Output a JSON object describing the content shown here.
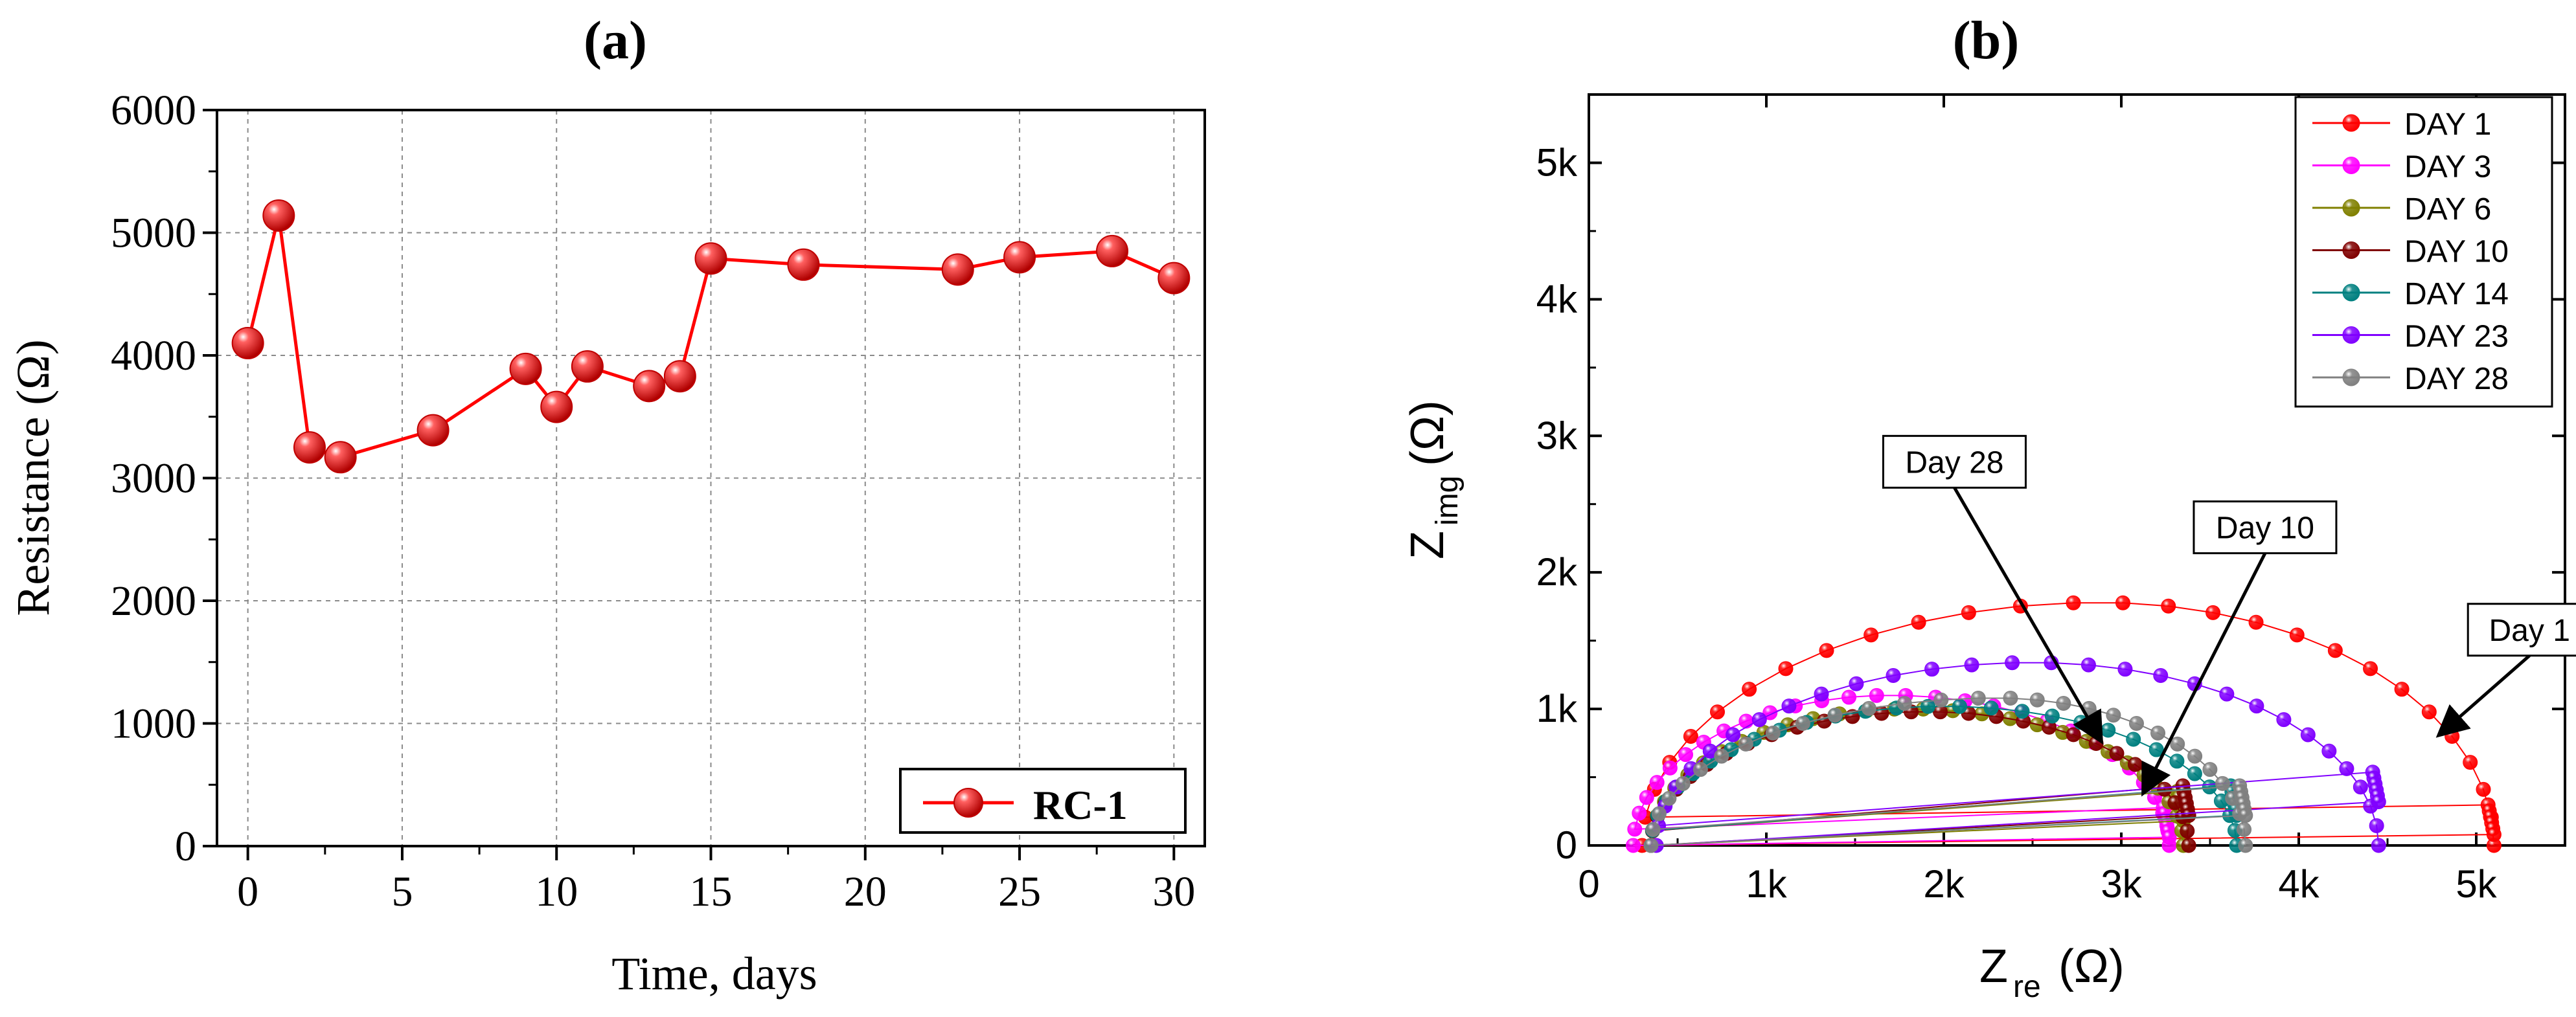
{
  "chart_data": [
    {
      "id": "a",
      "type": "line",
      "panel_label": "(a)",
      "xlabel": "Time, days",
      "ylabel": "Resistance (Ω)",
      "xlim": [
        -1,
        31
      ],
      "ylim": [
        0,
        6000
      ],
      "xticks": [
        0,
        5,
        10,
        15,
        20,
        25,
        30
      ],
      "xtick_labels": [
        "0",
        "5",
        "10",
        "15",
        "20",
        "25",
        "30"
      ],
      "yticks": [
        0,
        1000,
        2000,
        3000,
        4000,
        5000,
        6000
      ],
      "ytick_labels": [
        "0",
        "1000",
        "2000",
        "3000",
        "4000",
        "5000",
        "6000"
      ],
      "grid": true,
      "legend_position": "bottom-right",
      "series": [
        {
          "name": "RC-1",
          "color": "#ff0000",
          "x": [
            0,
            1,
            2,
            3,
            6,
            9,
            10,
            11,
            13,
            14,
            15,
            18,
            23,
            25,
            28,
            30
          ],
          "y": [
            4100,
            5140,
            3250,
            3170,
            3390,
            3890,
            3580,
            3910,
            3750,
            3830,
            4790,
            4740,
            4700,
            4800,
            4850,
            4630
          ]
        }
      ]
    },
    {
      "id": "b",
      "type": "scatter",
      "panel_label": "(b)",
      "xlabel_main": "Z",
      "xlabel_sub": "re",
      "xlabel_unit": "(Ω)",
      "ylabel_main": "Z",
      "ylabel_sub": "img",
      "ylabel_unit": "(Ω)",
      "xlim": [
        0,
        5500
      ],
      "ylim": [
        0,
        5500
      ],
      "xticks": [
        0,
        1000,
        2000,
        3000,
        4000,
        5000
      ],
      "xtick_labels": [
        "0",
        "1k",
        "2k",
        "3k",
        "4k",
        "5k"
      ],
      "yticks": [
        0,
        1000,
        2000,
        3000,
        4000,
        5000
      ],
      "ytick_labels": [
        "0",
        "1k",
        "2k",
        "3k",
        "4k",
        "5k"
      ],
      "legend_position": "top-right",
      "series": [
        {
          "name": "DAY 1",
          "color": "#ff0000",
          "z_start": 300,
          "z_end": 5100,
          "peak_x": 2880,
          "peak_y": 1780,
          "n": 28,
          "tail_to": 80
        },
        {
          "name": "DAY 3",
          "color": "#ff00ff",
          "z_start": 250,
          "z_end": 3270,
          "peak_x": 1700,
          "peak_y": 1100,
          "n": 30,
          "tail_to": 60
        },
        {
          "name": "DAY 6",
          "color": "#808000",
          "z_start": 350,
          "z_end": 3350,
          "peak_x": 1800,
          "peak_y": 1000,
          "n": 30,
          "tail_to": 180
        },
        {
          "name": "DAY 10",
          "color": "#800000",
          "z_start": 350,
          "z_end": 3380,
          "peak_x": 1900,
          "peak_y": 980,
          "n": 30,
          "tail_to": 220
        },
        {
          "name": "DAY 14",
          "color": "#008080",
          "z_start": 350,
          "z_end": 3650,
          "peak_x": 2000,
          "peak_y": 1020,
          "n": 30,
          "tail_to": 220
        },
        {
          "name": "DAY 23",
          "color": "#8000ff",
          "z_start": 380,
          "z_end": 4450,
          "peak_x": 2500,
          "peak_y": 1340,
          "n": 30,
          "tail_to": 320
        },
        {
          "name": "DAY 28",
          "color": "#808080",
          "z_start": 350,
          "z_end": 3700,
          "peak_x": 2300,
          "peak_y": 1080,
          "n": 30,
          "tail_to": 220
        }
      ],
      "annotations": [
        {
          "text": "Day 28",
          "target": [
            2880,
            780
          ],
          "box_center": [
            2060,
            2810
          ]
        },
        {
          "text": "Day 10",
          "target": [
            3130,
            400
          ],
          "box_center": [
            3810,
            2330
          ]
        },
        {
          "text": "Day 1",
          "target": [
            4800,
            820
          ],
          "box_center": [
            5300,
            1580
          ]
        }
      ]
    }
  ]
}
